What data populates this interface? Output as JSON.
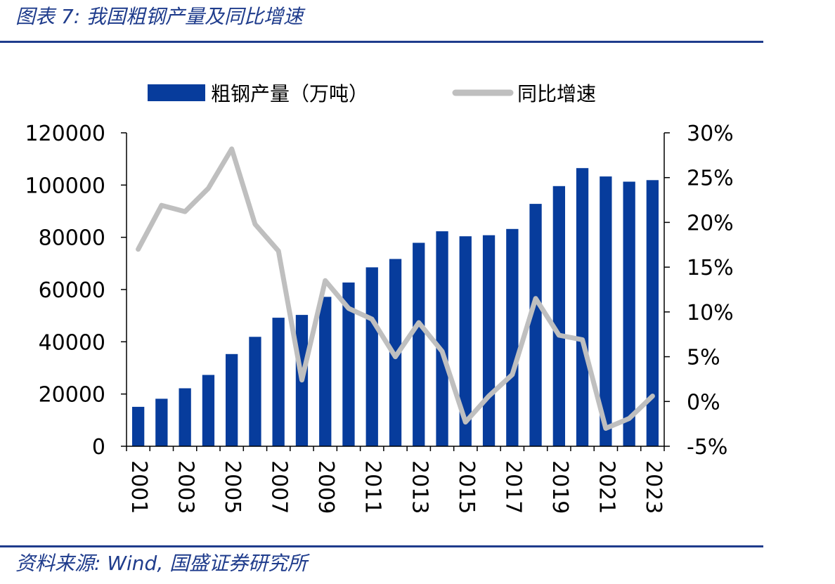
{
  "figure_title": "图表 7:  我国粗钢产量及同比增速",
  "source_text": "资料来源:  Wind,  国盛证券研究所",
  "colors": {
    "bar": "#073c9c",
    "line": "#bfbfbf",
    "rule": "#1f3c8c"
  },
  "chart_data": {
    "type": "bar",
    "categories": [
      "2001",
      "2002",
      "2003",
      "2004",
      "2005",
      "2006",
      "2007",
      "2008",
      "2009",
      "2010",
      "2011",
      "2012",
      "2013",
      "2014",
      "2015",
      "2016",
      "2017",
      "2018",
      "2019",
      "2020",
      "2021",
      "2022",
      "2023"
    ],
    "x_tick_labels": [
      "2001",
      "2003",
      "2005",
      "2007",
      "2009",
      "2011",
      "2013",
      "2015",
      "2017",
      "2019",
      "2021",
      "2023"
    ],
    "series": [
      {
        "name": "粗钢产量（万吨）",
        "type": "bar",
        "axis": "left",
        "values": [
          15100,
          18200,
          22200,
          27300,
          35300,
          41900,
          49200,
          50300,
          57200,
          62700,
          68500,
          71700,
          77900,
          82300,
          80400,
          80800,
          83200,
          92800,
          99600,
          106500,
          103300,
          101300,
          101900
        ]
      },
      {
        "name": "同比增速",
        "type": "line",
        "axis": "right",
        "values": [
          17.0,
          21.9,
          21.2,
          23.8,
          28.2,
          19.8,
          16.8,
          2.4,
          13.5,
          10.4,
          9.2,
          5.0,
          8.8,
          5.6,
          -2.3,
          0.6,
          3.0,
          11.5,
          7.4,
          6.9,
          -3.0,
          -1.9,
          0.6
        ]
      }
    ],
    "y_left": {
      "min": 0,
      "max": 120000,
      "ticks": [
        "0",
        "20000",
        "40000",
        "60000",
        "80000",
        "100000",
        "120000"
      ]
    },
    "y_right": {
      "min": -5,
      "max": 30,
      "ticks": [
        "-5%",
        "0%",
        "5%",
        "10%",
        "15%",
        "20%",
        "25%",
        "30%"
      ]
    },
    "legend_position": "top-center",
    "grid": false
  }
}
